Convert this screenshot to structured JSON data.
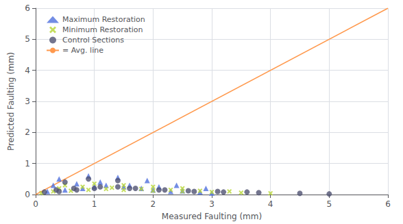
{
  "chart_data": {
    "type": "scatter",
    "xlabel": "Measured Faulting (mm)",
    "ylabel": "Predicted Faulting (mm)",
    "xlim": [
      0,
      6
    ],
    "ylim": [
      0,
      6
    ],
    "xticks": [
      0,
      1,
      2,
      3,
      4,
      5,
      6
    ],
    "yticks": [
      0,
      1,
      2,
      3,
      4,
      5,
      6
    ],
    "grid": true,
    "legend": "upper left",
    "series": [
      {
        "name": "Maximum Restoration",
        "type": "scatter",
        "marker": "triangle",
        "x": [
          0.2,
          0.5,
          0.8,
          1.0,
          1.2,
          1.5,
          1.8,
          2.0,
          2.3,
          2.5,
          2.8,
          3.0,
          0.3,
          0.7,
          1.1,
          1.6,
          2.1,
          0.4,
          0.9,
          1.4,
          1.9,
          2.4,
          2.9
        ],
        "values": [
          0.1,
          0.15,
          0.2,
          0.25,
          0.3,
          0.25,
          0.2,
          0.15,
          0.1,
          0.12,
          0.08,
          0.05,
          0.3,
          0.35,
          0.4,
          0.3,
          0.25,
          0.5,
          0.6,
          0.55,
          0.45,
          0.3,
          0.2
        ]
      },
      {
        "name": "Minimum Restoration",
        "type": "scatter",
        "marker": "x",
        "x": [
          0.1,
          0.3,
          0.6,
          0.9,
          1.2,
          1.5,
          2.0,
          2.5,
          3.0,
          3.5,
          4.0,
          0.4,
          0.8,
          1.3,
          1.8,
          2.3,
          2.8,
          3.3,
          0.5,
          1.0,
          1.5,
          2.0,
          2.5
        ],
        "values": [
          0.05,
          0.1,
          0.12,
          0.15,
          0.18,
          0.15,
          0.12,
          0.1,
          0.08,
          0.06,
          0.04,
          0.2,
          0.25,
          0.22,
          0.18,
          0.15,
          0.12,
          0.1,
          0.3,
          0.35,
          0.3,
          0.25,
          0.2
        ]
      },
      {
        "name": "Control Sections",
        "type": "scatter",
        "marker": "circle",
        "x": [
          0.15,
          0.4,
          0.7,
          1.0,
          1.4,
          1.7,
          2.2,
          2.7,
          3.2,
          3.8,
          4.5,
          5.0,
          0.35,
          0.65,
          1.1,
          1.6,
          2.1,
          2.6,
          3.1,
          3.6,
          0.5,
          0.9,
          1.4
        ],
        "values": [
          0.08,
          0.1,
          0.15,
          0.2,
          0.25,
          0.2,
          0.15,
          0.1,
          0.08,
          0.06,
          0.04,
          0.02,
          0.15,
          0.2,
          0.25,
          0.2,
          0.15,
          0.12,
          0.1,
          0.08,
          0.4,
          0.5,
          0.45
        ]
      },
      {
        "name": "= Avg. line",
        "type": "line",
        "line_style": "solid",
        "x": [
          0,
          6
        ],
        "values": [
          0,
          6
        ]
      }
    ]
  }
}
